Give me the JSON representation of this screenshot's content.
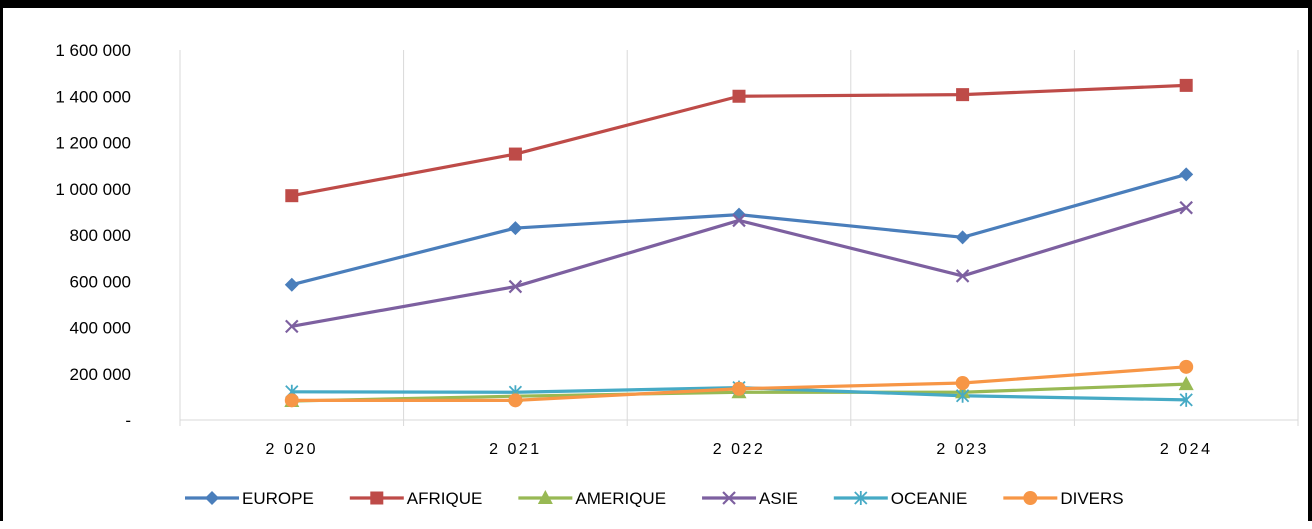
{
  "chart_data": {
    "type": "line",
    "categories": [
      "2 020",
      "2 021",
      "2 022",
      "2 023",
      "2 024"
    ],
    "y_tick_labels": [
      "-",
      "200 000",
      "400 000",
      "600 000",
      "800 000",
      "1 000 000",
      "1 200 000",
      "1 400 000",
      "1 600 000"
    ],
    "ylim": [
      0,
      1600000
    ],
    "y_tick_step": 200000,
    "grid": "vertical",
    "legend_position": "bottom",
    "series": [
      {
        "name": "EUROPE",
        "color": "#4a7ebb",
        "marker": "diamond",
        "values": [
          585000,
          830000,
          888000,
          790000,
          1062000
        ]
      },
      {
        "name": "AFRIQUE",
        "color": "#be4b48",
        "marker": "square",
        "values": [
          970000,
          1150000,
          1400000,
          1407000,
          1447000
        ]
      },
      {
        "name": "AMERIQUE",
        "color": "#98b954",
        "marker": "triangle",
        "values": [
          82000,
          103000,
          120000,
          120000,
          155000
        ]
      },
      {
        "name": "ASIE",
        "color": "#7d60a0",
        "marker": "x",
        "values": [
          405000,
          577000,
          863000,
          623000,
          918000
        ]
      },
      {
        "name": "OCEANIE",
        "color": "#46aac5",
        "marker": "star",
        "values": [
          122000,
          120000,
          140000,
          105000,
          87000
        ]
      },
      {
        "name": "DIVERS",
        "color": "#f79646",
        "marker": "circle",
        "values": [
          85000,
          85000,
          135000,
          160000,
          230000
        ]
      }
    ]
  }
}
